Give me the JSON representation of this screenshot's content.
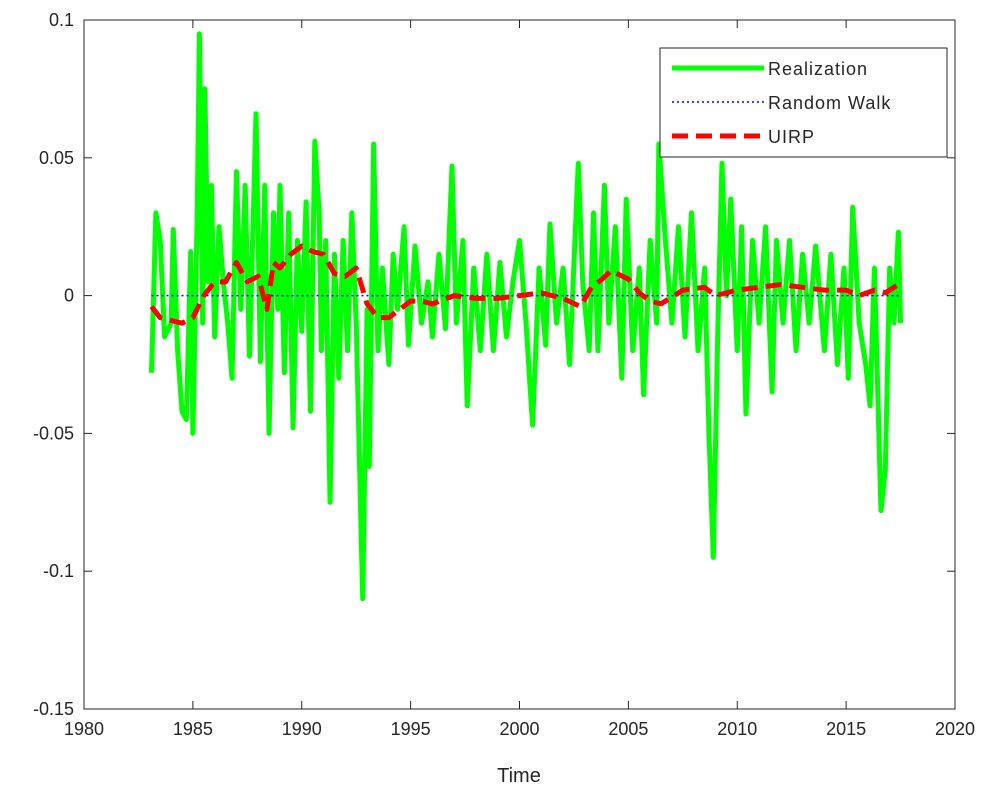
{
  "chart_data": {
    "type": "line",
    "x_label": "Time",
    "xlim": [
      1980,
      2020
    ],
    "xticks": [
      1980,
      1985,
      1990,
      1995,
      2000,
      2005,
      2010,
      2015,
      2020
    ],
    "ylim": [
      -0.15,
      0.1
    ],
    "yticks": [
      -0.15,
      -0.1,
      -0.05,
      0,
      0.05,
      0.1
    ],
    "legend": "upper right",
    "series": [
      {
        "name": "Realization",
        "color": "#00ff00",
        "style": "solid",
        "width": 5,
        "x": [
          1983.1,
          1983.3,
          1983.5,
          1983.7,
          1984.0,
          1984.1,
          1984.3,
          1984.5,
          1984.7,
          1984.9,
          1985.0,
          1985.2,
          1985.3,
          1985.45,
          1985.55,
          1985.7,
          1985.85,
          1986.0,
          1986.2,
          1986.4,
          1986.6,
          1986.8,
          1987.0,
          1987.2,
          1987.4,
          1987.6,
          1987.9,
          1988.1,
          1988.3,
          1988.5,
          1988.7,
          1988.9,
          1989.0,
          1989.2,
          1989.4,
          1989.6,
          1989.8,
          1990.0,
          1990.2,
          1990.4,
          1990.6,
          1990.8,
          1990.9,
          1991.1,
          1991.3,
          1991.5,
          1991.7,
          1991.9,
          1992.1,
          1992.3,
          1992.5,
          1992.8,
          1993.0,
          1993.1,
          1993.3,
          1993.5,
          1993.7,
          1994.0,
          1994.2,
          1994.4,
          1994.7,
          1994.9,
          1995.2,
          1995.5,
          1995.8,
          1996.0,
          1996.3,
          1996.6,
          1996.9,
          1997.1,
          1997.4,
          1997.6,
          1997.9,
          1998.2,
          1998.5,
          1998.8,
          1999.1,
          1999.4,
          1999.7,
          2000.0,
          2000.3,
          2000.6,
          2000.9,
          2001.2,
          2001.4,
          2001.7,
          2002.0,
          2002.3,
          2002.7,
          2002.9,
          2003.2,
          2003.4,
          2003.6,
          2003.9,
          2004.1,
          2004.4,
          2004.7,
          2004.9,
          2005.2,
          2005.5,
          2005.7,
          2006.0,
          2006.3,
          2006.4,
          2006.7,
          2007.0,
          2007.3,
          2007.6,
          2007.9,
          2008.2,
          2008.5,
          2008.7,
          2008.9,
          2009.1,
          2009.3,
          2009.5,
          2009.7,
          2010.0,
          2010.2,
          2010.4,
          2010.7,
          2011.0,
          2011.3,
          2011.6,
          2011.8,
          2012.1,
          2012.4,
          2012.7,
          2013.0,
          2013.3,
          2013.6,
          2014.0,
          2014.3,
          2014.6,
          2014.9,
          2015.1,
          2015.3,
          2015.6,
          2015.9,
          2016.1,
          2016.3,
          2016.6,
          2016.8,
          2017.0,
          2017.2,
          2017.4,
          2017.5
        ],
        "values": [
          -0.028,
          0.03,
          0.02,
          -0.015,
          -0.01,
          0.024,
          -0.02,
          -0.042,
          -0.045,
          0.016,
          -0.05,
          0.03,
          0.095,
          -0.01,
          0.075,
          0.005,
          0.04,
          -0.015,
          0.025,
          0.005,
          -0.01,
          -0.03,
          0.045,
          -0.005,
          0.04,
          -0.022,
          0.066,
          -0.024,
          0.04,
          -0.05,
          0.03,
          -0.005,
          0.04,
          -0.028,
          0.03,
          -0.048,
          0.02,
          -0.013,
          0.034,
          -0.042,
          0.056,
          0.03,
          -0.02,
          0.02,
          -0.075,
          0.015,
          -0.03,
          0.02,
          -0.02,
          0.03,
          -0.01,
          -0.11,
          -0.005,
          -0.062,
          0.055,
          -0.02,
          0.01,
          -0.025,
          0.015,
          -0.005,
          0.025,
          -0.018,
          0.018,
          -0.01,
          0.005,
          -0.015,
          0.015,
          -0.012,
          0.047,
          -0.01,
          0.02,
          -0.04,
          0.01,
          -0.02,
          0.015,
          -0.02,
          0.012,
          -0.015,
          0.005,
          0.02,
          -0.01,
          -0.047,
          0.01,
          -0.018,
          0.026,
          -0.01,
          0.01,
          -0.025,
          0.048,
          0.005,
          -0.02,
          0.03,
          -0.02,
          0.04,
          -0.01,
          0.025,
          -0.03,
          0.035,
          -0.02,
          0.01,
          -0.036,
          0.02,
          -0.01,
          0.055,
          0.02,
          -0.01,
          0.025,
          -0.015,
          0.03,
          -0.02,
          0.01,
          -0.05,
          -0.095,
          -0.015,
          0.048,
          0.0,
          0.035,
          -0.02,
          0.025,
          -0.043,
          0.02,
          -0.01,
          0.025,
          -0.035,
          0.02,
          -0.01,
          0.02,
          -0.02,
          0.015,
          -0.01,
          0.018,
          -0.02,
          0.015,
          -0.025,
          0.01,
          -0.03,
          0.032,
          -0.01,
          -0.025,
          -0.04,
          0.01,
          -0.078,
          -0.063,
          0.01,
          -0.01,
          0.023,
          -0.01
        ]
      },
      {
        "name": "Random Walk",
        "color": "#0000ff",
        "style": "dotted",
        "width": 1.5,
        "x": [
          1983.1,
          2017.5
        ],
        "values": [
          0,
          0
        ]
      },
      {
        "name": "UIRP",
        "color": "#ff0000",
        "style": "dashed",
        "width": 5,
        "x": [
          1983.1,
          1983.5,
          1984.0,
          1984.5,
          1985.0,
          1985.5,
          1986.0,
          1986.5,
          1987.0,
          1987.5,
          1988.0,
          1988.4,
          1988.7,
          1989.0,
          1989.5,
          1990.0,
          1990.5,
          1991.0,
          1991.5,
          1992.0,
          1992.5,
          1993.0,
          1993.5,
          1994.0,
          1994.5,
          1995.0,
          1995.5,
          1996.0,
          1997.0,
          1998.0,
          1999.0,
          2000.0,
          2001.0,
          2002.0,
          2002.8,
          2003.3,
          2003.8,
          2004.2,
          2005.0,
          2005.5,
          2006.0,
          2006.5,
          2007.5,
          2008.5,
          2009.0,
          2010.0,
          2011.0,
          2012.0,
          2013.0,
          2014.0,
          2015.0,
          2015.6,
          2016.3,
          2016.8,
          2017.4
        ],
        "values": [
          -0.004,
          -0.008,
          -0.009,
          -0.01,
          -0.008,
          0.0,
          0.005,
          0.005,
          0.012,
          0.005,
          0.007,
          -0.005,
          0.012,
          0.01,
          0.015,
          0.018,
          0.016,
          0.015,
          0.008,
          0.007,
          0.01,
          -0.003,
          -0.008,
          -0.008,
          -0.005,
          -0.002,
          -0.002,
          -0.003,
          0.0,
          -0.001,
          -0.001,
          0.0,
          0.001,
          -0.001,
          -0.004,
          0.003,
          0.006,
          0.009,
          0.006,
          0.001,
          -0.002,
          -0.003,
          0.002,
          0.003,
          0.0,
          0.002,
          0.003,
          0.004,
          0.003,
          0.002,
          0.002,
          0.0,
          0.002,
          0.001,
          0.004
        ]
      }
    ]
  }
}
